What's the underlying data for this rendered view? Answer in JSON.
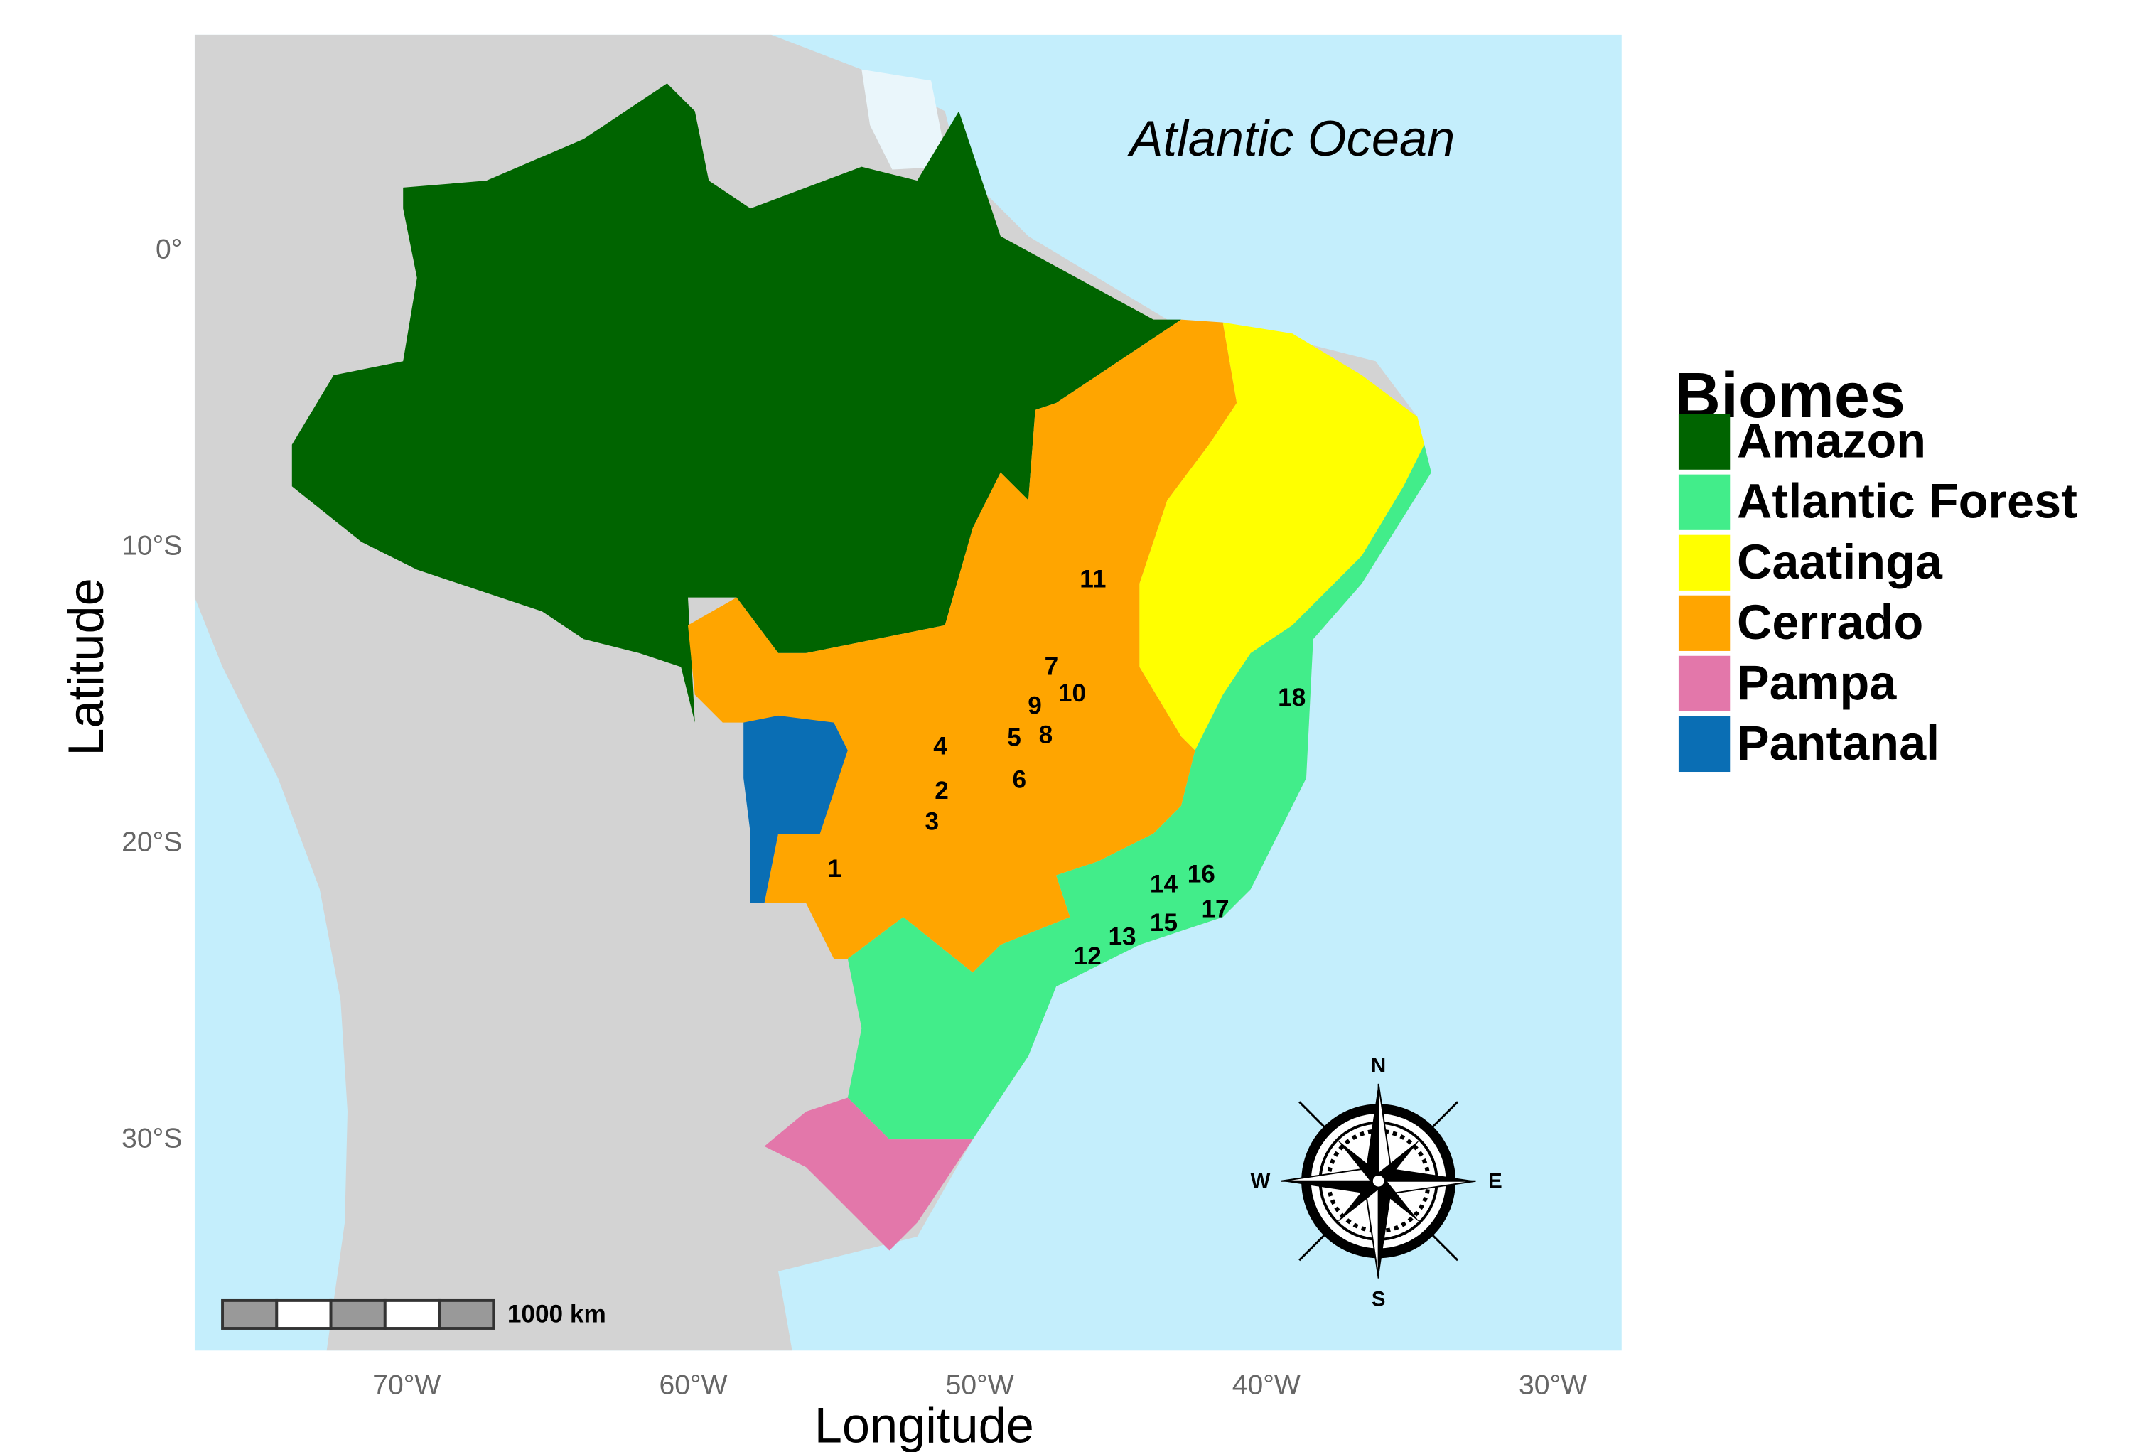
{
  "map": {
    "annotation": "Atlantic Ocean",
    "x_label": "Longitude",
    "y_label": "Latitude",
    "xlim": [
      -77.4,
      -27.6
    ],
    "ylim": [
      -37.1,
      7.3
    ],
    "xticks": [
      {
        "value": -70,
        "label": "70°W"
      },
      {
        "value": -60,
        "label": "60°W"
      },
      {
        "value": -50,
        "label": "50°W"
      },
      {
        "value": -40,
        "label": "40°W"
      },
      {
        "value": -30,
        "label": "30°W"
      }
    ],
    "yticks": [
      {
        "value": 0,
        "label": "0°"
      },
      {
        "value": -10,
        "label": "10°S"
      },
      {
        "value": -20,
        "label": "20°S"
      },
      {
        "value": -30,
        "label": "30°S"
      }
    ],
    "legend": {
      "title": "Biomes",
      "items": [
        {
          "name": "Amazon",
          "color": "#006400"
        },
        {
          "name": "Atlantic Forest",
          "color": "#42ed8a"
        },
        {
          "name": "Caatinga",
          "color": "#ffff00"
        },
        {
          "name": "Cerrado",
          "color": "#ffa500"
        },
        {
          "name": "Pampa",
          "color": "#e377aa"
        },
        {
          "name": "Pantanal",
          "color": "#0a6eb4"
        }
      ]
    },
    "sites": [
      {
        "label": "1",
        "lon": -55.07,
        "lat": -20.9
      },
      {
        "label": "2",
        "lon": -51.33,
        "lat": -18.26
      },
      {
        "label": "3",
        "lon": -51.67,
        "lat": -19.3
      },
      {
        "label": "4",
        "lon": -51.38,
        "lat": -16.76
      },
      {
        "label": "5",
        "lon": -48.8,
        "lat": -16.48
      },
      {
        "label": "6",
        "lon": -48.62,
        "lat": -17.89
      },
      {
        "label": "7",
        "lon": -47.5,
        "lat": -14.08
      },
      {
        "label": "8",
        "lon": -47.7,
        "lat": -16.38
      },
      {
        "label": "9",
        "lon": -48.08,
        "lat": -15.4
      },
      {
        "label": "10",
        "lon": -46.78,
        "lat": -14.98
      },
      {
        "label": "11",
        "lon": -46.05,
        "lat": -11.13
      },
      {
        "label": "12",
        "lon": -46.24,
        "lat": -23.85
      },
      {
        "label": "13",
        "lon": -45.03,
        "lat": -23.19
      },
      {
        "label": "14",
        "lon": -43.58,
        "lat": -21.41
      },
      {
        "label": "15",
        "lon": -43.58,
        "lat": -22.72
      },
      {
        "label": "16",
        "lon": -42.27,
        "lat": -21.08
      },
      {
        "label": "17",
        "lon": -41.78,
        "lat": -22.25
      },
      {
        "label": "18",
        "lon": -39.11,
        "lat": -15.12
      }
    ],
    "scale_bar": "1000 km",
    "compass": [
      "N",
      "E",
      "S",
      "W"
    ]
  }
}
